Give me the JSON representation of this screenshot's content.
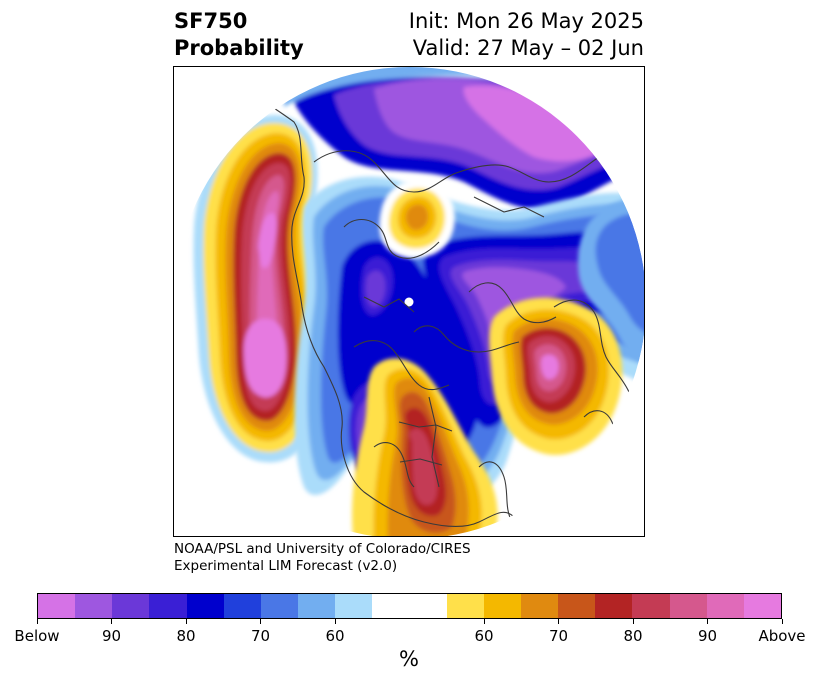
{
  "title": {
    "variable": "SF750",
    "type": "Probability",
    "init": "Init: Mon 26 May 2025",
    "valid": "Valid: 27 May – 02 Jun"
  },
  "credit": {
    "line1": "NOAA/PSL and University of Colorado/CIRES",
    "line2": "Experimental LIM Forecast (v2.0)"
  },
  "colorbar": {
    "unit": "%",
    "colors": [
      "#d572e6",
      "#9e57e0",
      "#6b38d8",
      "#3a1fd5",
      "#0000cd",
      "#2040dc",
      "#4a77e6",
      "#72aef0",
      "#aadcfa",
      "#ffffff",
      "#ffe04a",
      "#f4b800",
      "#e08a10",
      "#c8561a",
      "#b32424",
      "#c43b54",
      "#d5588d",
      "#e06ab9",
      "#e67ae0"
    ],
    "ticks": [
      "Below",
      "90",
      "80",
      "70",
      "60",
      "60",
      "70",
      "80",
      "90",
      "Above"
    ]
  },
  "map": {
    "projection": "north-polar-stereographic",
    "colors": {
      "outer_pink": "#e67ae0",
      "deep_red": "#b32424",
      "red_mid": "#c43b54",
      "rose": "#d5588d",
      "orange": "#e08a10",
      "yellow_orange": "#f4b800",
      "yellow": "#ffe04a",
      "light_blue": "#aadcfa",
      "blue": "#4a77e6",
      "deep_blue": "#0000cd",
      "indigo": "#3a1fd5",
      "violet": "#6b38d8",
      "purple": "#9e57e0",
      "light_purple": "#d572e6",
      "coast": "#3a3a3a"
    }
  }
}
